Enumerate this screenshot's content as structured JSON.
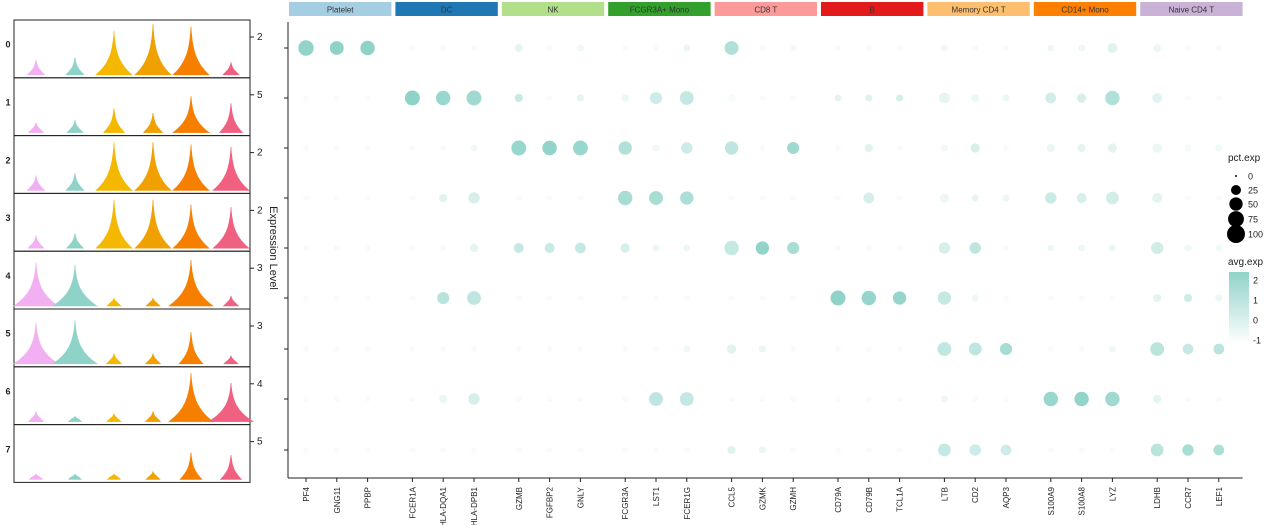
{
  "chart_data": [
    {
      "type": "violin",
      "ylabel": "Expression Level",
      "clusters": [
        "0",
        "1",
        "2",
        "3",
        "4",
        "5",
        "6",
        "7"
      ],
      "genes_colors": [
        "#f2b0f2",
        "#8fd3c8",
        "#f5b800",
        "#f0a000",
        "#f77f00",
        "#f06080"
      ],
      "ymax_labels": [
        "2",
        "5",
        "2",
        "2",
        "3",
        "3",
        "4",
        "5"
      ],
      "violins": [
        [
          0.25,
          0.3,
          0.85,
          1.0,
          0.95,
          0.2
        ],
        [
          0.15,
          0.2,
          0.45,
          0.35,
          0.7,
          0.55
        ],
        [
          0.25,
          0.3,
          0.95,
          0.95,
          0.9,
          0.85
        ],
        [
          0.2,
          0.25,
          0.95,
          0.95,
          0.85,
          0.8
        ],
        [
          0.85,
          0.8,
          0.1,
          0.1,
          0.9,
          0.15
        ],
        [
          0.8,
          0.85,
          0.15,
          0.15,
          0.6,
          0.1
        ],
        [
          0.15,
          0.05,
          0.1,
          0.15,
          0.95,
          0.75
        ],
        [
          0.05,
          0.05,
          0.05,
          0.1,
          0.5,
          0.45
        ]
      ]
    },
    {
      "type": "dotplot",
      "groups": [
        {
          "name": "Platelet",
          "color": "#a6cee3",
          "genes": [
            "PF4",
            "GNG11",
            "PPBP"
          ]
        },
        {
          "name": "DC",
          "color": "#1f78b4",
          "genes": [
            "FCER1A",
            "HLA-DQA1",
            "HLA-DPB1"
          ]
        },
        {
          "name": "NK",
          "color": "#b2df8a",
          "genes": [
            "GZMB",
            "FGFBP2",
            "GNLY"
          ]
        },
        {
          "name": "FCGR3A+ Mono",
          "color": "#33a02c",
          "genes": [
            "FCGR3A",
            "LST1",
            "FCER1G"
          ]
        },
        {
          "name": "CD8 T",
          "color": "#fb9a99",
          "genes": [
            "CCL5",
            "GZMK",
            "GZMH"
          ]
        },
        {
          "name": "B",
          "color": "#e31a1c",
          "genes": [
            "CD79A",
            "CD79B",
            "TCL1A"
          ]
        },
        {
          "name": "Memory CD4 T",
          "color": "#fdbf6f",
          "genes": [
            "LTB",
            "CD2",
            "AQP3"
          ]
        },
        {
          "name": "CD14+ Mono",
          "color": "#ff7f00",
          "genes": [
            "S100A9",
            "S100A8",
            "LYZ"
          ]
        },
        {
          "name": "Naive CD4 T",
          "color": "#cab2d6",
          "genes": [
            "LDHB",
            "CCR7",
            "LEF1"
          ]
        }
      ],
      "pct": [
        [
          70,
          55,
          60,
          5,
          5,
          5,
          15,
          5,
          10,
          5,
          5,
          10,
          55,
          5,
          10,
          5,
          5,
          5,
          10,
          5,
          5,
          10,
          10,
          25,
          15,
          5,
          5
        ],
        [
          5,
          5,
          5,
          65,
          60,
          65,
          15,
          5,
          10,
          10,
          40,
          55,
          10,
          5,
          5,
          10,
          10,
          10,
          30,
          15,
          10,
          30,
          20,
          60,
          25,
          5,
          5
        ],
        [
          5,
          5,
          5,
          5,
          5,
          10,
          65,
          60,
          65,
          50,
          10,
          35,
          50,
          5,
          40,
          5,
          15,
          5,
          10,
          20,
          5,
          15,
          15,
          20,
          20,
          10,
          10
        ],
        [
          5,
          5,
          5,
          5,
          15,
          35,
          5,
          5,
          5,
          60,
          55,
          50,
          5,
          5,
          5,
          5,
          30,
          5,
          20,
          10,
          10,
          35,
          25,
          45,
          25,
          5,
          5
        ],
        [
          5,
          5,
          5,
          5,
          5,
          15,
          25,
          25,
          30,
          20,
          10,
          10,
          60,
          50,
          40,
          5,
          5,
          5,
          35,
          35,
          5,
          10,
          10,
          10,
          40,
          10,
          10
        ],
        [
          5,
          5,
          5,
          5,
          40,
          55,
          5,
          5,
          5,
          5,
          5,
          5,
          5,
          5,
          5,
          65,
          60,
          50,
          50,
          10,
          5,
          5,
          5,
          5,
          15,
          15,
          10
        ],
        [
          5,
          5,
          5,
          5,
          5,
          5,
          5,
          5,
          5,
          5,
          5,
          10,
          20,
          10,
          5,
          5,
          5,
          5,
          55,
          45,
          40,
          5,
          5,
          10,
          55,
          30,
          30
        ],
        [
          5,
          5,
          5,
          5,
          15,
          35,
          5,
          5,
          5,
          5,
          55,
          55,
          5,
          5,
          5,
          5,
          5,
          5,
          10,
          5,
          5,
          60,
          60,
          60,
          15,
          5,
          5
        ],
        [
          5,
          5,
          5,
          5,
          5,
          5,
          5,
          5,
          5,
          5,
          5,
          5,
          15,
          10,
          5,
          5,
          5,
          5,
          45,
          35,
          30,
          5,
          5,
          5,
          45,
          35,
          30
        ]
      ],
      "avg": [
        [
          2.2,
          2.3,
          2.3,
          -1,
          -1,
          -1,
          -0.5,
          -1,
          -0.8,
          -1,
          -1,
          -0.6,
          1.2,
          -1,
          -0.9,
          -1,
          -1,
          -1,
          -0.8,
          -1,
          -1,
          -0.7,
          -0.7,
          -0.3,
          -0.6,
          -1,
          -1
        ],
        [
          -1,
          -1,
          -1,
          2.3,
          2.0,
          1.8,
          0.5,
          -1,
          -0.4,
          -0.6,
          0.3,
          0.6,
          -1,
          -1,
          -1,
          -0.4,
          -0.3,
          0.1,
          -0.5,
          -0.7,
          -0.6,
          0.2,
          0.0,
          1.2,
          -0.3,
          -1,
          -1
        ],
        [
          -1,
          -1,
          -1,
          -1,
          -1,
          -0.8,
          2.0,
          2.2,
          2.0,
          1.2,
          -0.8,
          0.3,
          0.8,
          -1,
          1.8,
          -1,
          -0.3,
          -1,
          -0.8,
          0.0,
          -1,
          -0.6,
          -0.5,
          -0.4,
          -0.6,
          -0.9,
          -0.8
        ],
        [
          -1,
          -1,
          -1,
          -1,
          -0.3,
          0.0,
          -1,
          -1,
          -1,
          1.5,
          1.5,
          1.4,
          -1,
          -1,
          -1,
          -1,
          0.1,
          -1,
          -0.7,
          -0.5,
          -0.6,
          0.4,
          0.0,
          0.2,
          -0.4,
          -1,
          -1
        ],
        [
          -1,
          -1,
          -1,
          -1,
          -0.9,
          -0.4,
          0.5,
          0.5,
          0.6,
          0.0,
          -0.7,
          -0.7,
          0.6,
          2.2,
          1.5,
          -1,
          -1,
          -1,
          0.0,
          0.8,
          -1,
          -0.7,
          -0.7,
          -0.6,
          0.2,
          -0.8,
          -0.8
        ],
        [
          -1,
          -1,
          -1,
          -1,
          1.0,
          0.8,
          -1,
          -1,
          -1,
          -1,
          -1,
          -1,
          -1,
          -1,
          -1,
          2.3,
          2.1,
          2.1,
          0.6,
          -0.7,
          -1,
          -1,
          -1,
          -1,
          -0.4,
          0.3,
          -0.6
        ],
        [
          -1,
          -1,
          -1,
          -1,
          -1,
          -1,
          -1,
          -1,
          -1,
          -1,
          -1,
          -0.8,
          -0.3,
          -0.6,
          -1,
          -1,
          -1,
          -1,
          0.7,
          0.8,
          1.6,
          -1,
          -1,
          -0.8,
          0.9,
          0.5,
          0.9
        ],
        [
          -1,
          -1,
          -1,
          -1,
          -0.6,
          0.0,
          -1,
          -1,
          -1,
          -1,
          0.8,
          0.6,
          -1,
          -1,
          -1,
          -1,
          -1,
          -1,
          -0.7,
          -1,
          -1,
          2.0,
          2.2,
          1.8,
          -0.4,
          -1,
          -1
        ],
        [
          -1,
          -1,
          -1,
          -1,
          -1,
          -1,
          -1,
          -1,
          -1,
          -1,
          -1,
          -1,
          -0.3,
          -0.6,
          -1,
          -1,
          -1,
          -1,
          0.6,
          0.3,
          0.3,
          -1,
          -1,
          -1,
          0.9,
          1.5,
          1.4
        ]
      ],
      "legend_size": {
        "title": "pct.exp",
        "values": [
          "0",
          "25",
          "50",
          "75",
          "100"
        ]
      },
      "legend_color": {
        "title": "avg.exp",
        "ticks": [
          "2",
          "1",
          "0",
          "-1"
        ],
        "low": "#ffffff",
        "high": "#8fd3c8"
      }
    }
  ]
}
